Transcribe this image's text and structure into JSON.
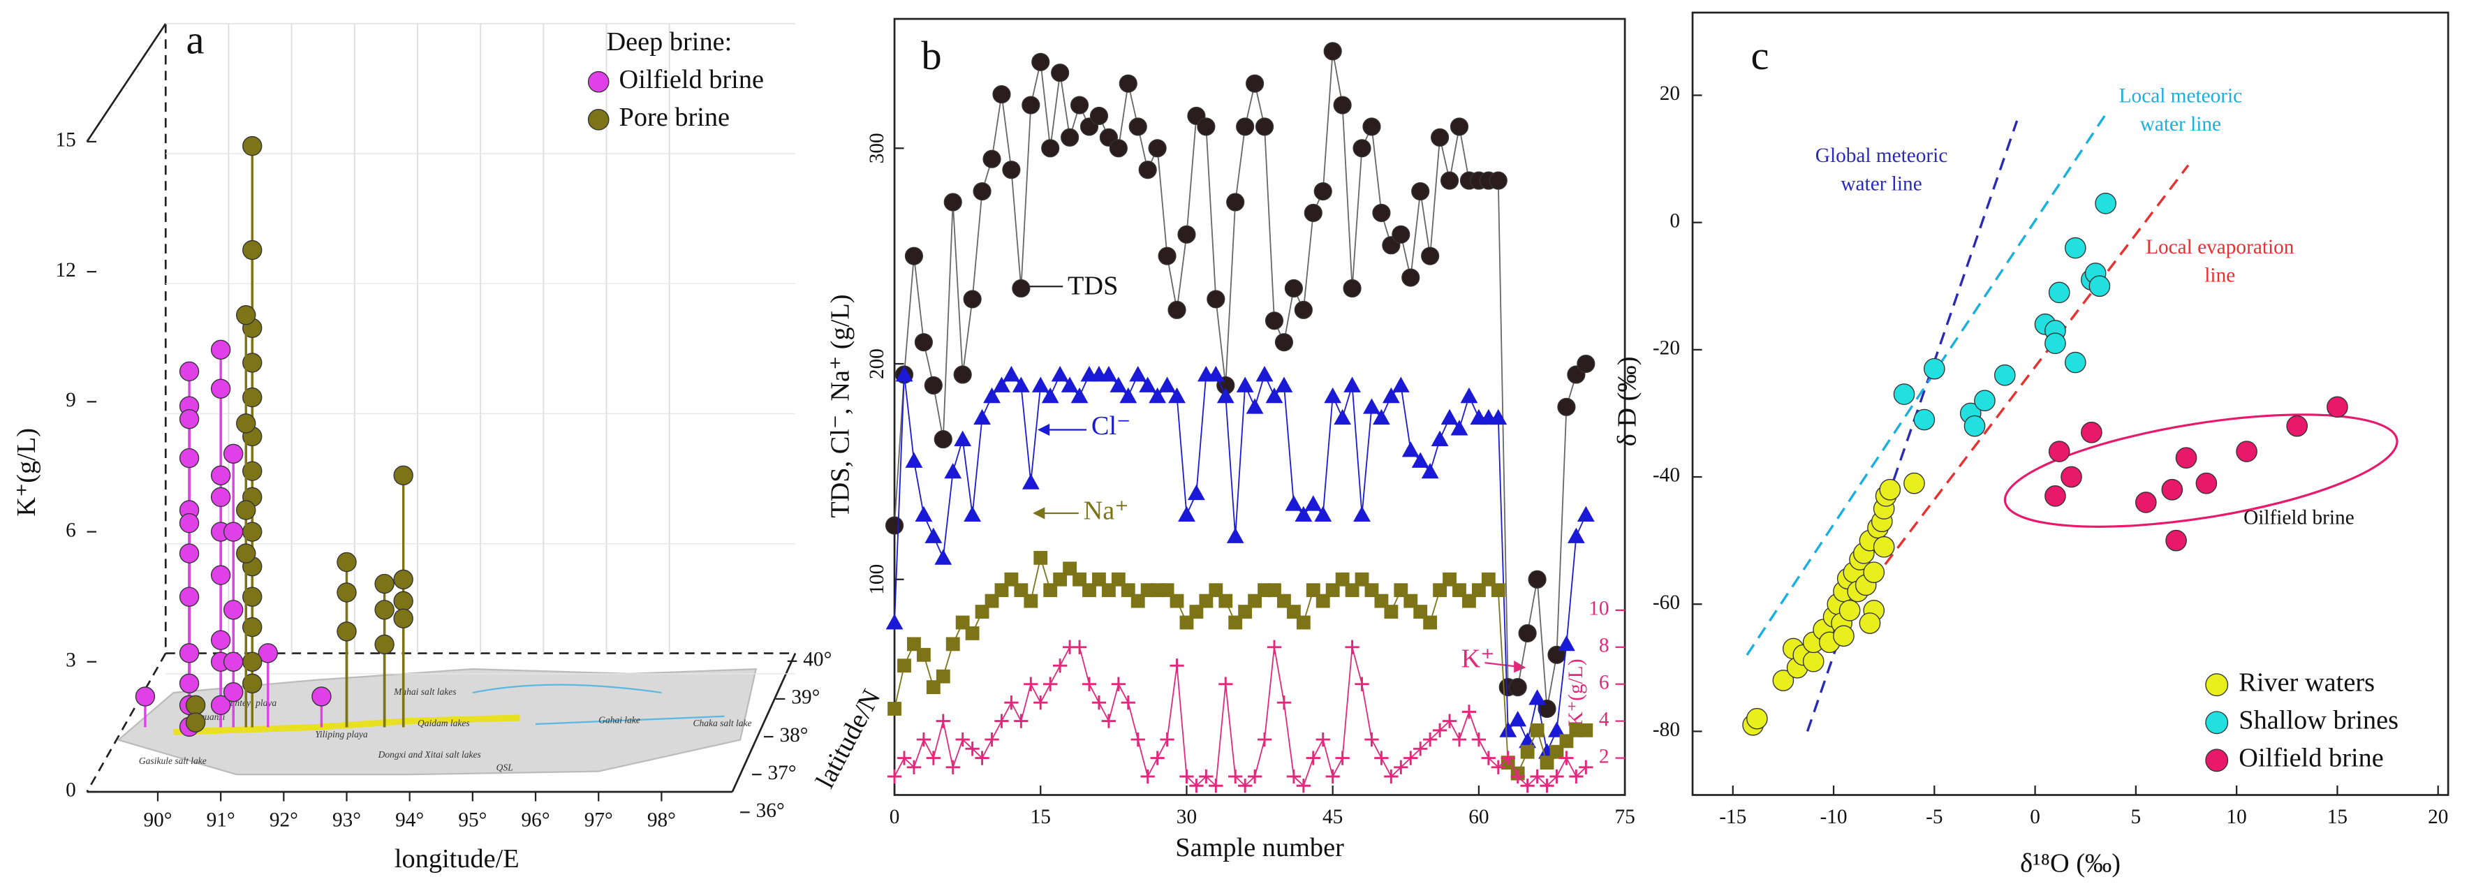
{
  "chart_data": [
    {
      "type": "scatter",
      "stems": true,
      "panel": "a",
      "xlabel": "longitude/E",
      "ylabel": "K⁺(g/L)",
      "zlabel": "latitude/N",
      "legend_title": "Deep brine:",
      "xlim": [
        89.3,
        99
      ],
      "xticks": [
        {
          "value": 90,
          "label": "90°"
        },
        {
          "value": 91,
          "label": "91°"
        },
        {
          "value": 92,
          "label": "92°"
        },
        {
          "value": 93,
          "label": "93°"
        },
        {
          "value": 94,
          "label": "94°"
        },
        {
          "value": 95,
          "label": "95°"
        },
        {
          "value": 96,
          "label": "96°"
        },
        {
          "value": 97,
          "label": "97°"
        },
        {
          "value": 98,
          "label": "98°"
        }
      ],
      "ylim": [
        0,
        15
      ],
      "yticks": [
        0,
        3,
        6,
        9,
        12,
        15
      ],
      "zlim": [
        36,
        40
      ],
      "zticks": [
        {
          "value": 36,
          "label": "36°"
        },
        {
          "value": 37,
          "label": "37°"
        },
        {
          "value": 38,
          "label": "38°"
        },
        {
          "value": 39,
          "label": "39°"
        },
        {
          "value": 40,
          "label": "40°"
        }
      ],
      "map_labels": [
        "Gasikule salt lake",
        "Yanquanzi",
        "Kunteyi playa",
        "Yiliping playa",
        "Mahai salt lakes",
        "Qaidam lakes",
        "Gahai lake",
        "Chaka salt lake",
        "Dongxi and Xitai salt lakes",
        "QSL"
      ],
      "series": [
        {
          "name": "Oilfield brine",
          "color": "#e040e8",
          "x": [
            90.5,
            90.5,
            90.5,
            90.5,
            90.5,
            90.5,
            90.5,
            90.5,
            90.5,
            90.5,
            90.5,
            90.5,
            91.0,
            91.0,
            91.0,
            91.0,
            91.0,
            91.0,
            91.0,
            91.0,
            91.0,
            91.2,
            91.2,
            91.2,
            91.2,
            91.2,
            91.75,
            89.8,
            92.6
          ],
          "values": [
            9.7,
            8.9,
            8.6,
            7.7,
            6.5,
            6.2,
            5.5,
            4.5,
            3.2,
            2.5,
            2.0,
            1.5,
            10.2,
            9.3,
            7.3,
            6.8,
            6.0,
            5.0,
            3.5,
            3.0,
            2.0,
            7.8,
            6.0,
            4.2,
            3.0,
            2.3,
            3.2,
            2.2,
            2.2
          ]
        },
        {
          "name": "Pore brine",
          "color": "#7d7418",
          "x": [
            91.5,
            91.5,
            91.5,
            91.5,
            91.5,
            91.5,
            91.5,
            91.5,
            91.5,
            91.5,
            91.5,
            91.5,
            91.5,
            91.5,
            91.4,
            91.4,
            91.4,
            91.4,
            93.0,
            93.0,
            93.0,
            93.6,
            93.6,
            93.6,
            93.9,
            93.9,
            93.9,
            93.9,
            90.6,
            90.6
          ],
          "values": [
            14.9,
            12.5,
            10.7,
            9.9,
            9.1,
            8.2,
            7.4,
            6.8,
            6.0,
            5.2,
            4.5,
            3.8,
            3.0,
            2.5,
            11.0,
            8.5,
            6.5,
            5.5,
            5.3,
            4.6,
            3.7,
            4.8,
            4.2,
            3.4,
            7.3,
            4.9,
            4.4,
            4.0,
            2.0,
            1.6
          ]
        }
      ]
    },
    {
      "type": "line",
      "panel": "b",
      "xlabel": "Sample number",
      "ylabel": "TDS, Cl⁻, Na⁺ (g/L)",
      "y2label": "K⁺(g/L)",
      "annotations": [
        "TDS",
        "Cl⁻",
        "Na⁺",
        "K⁺"
      ],
      "xlim": [
        0,
        75
      ],
      "xticks": [
        0,
        15,
        30,
        45,
        60,
        75
      ],
      "ylim": [
        0,
        360
      ],
      "yticks": [
        100,
        200,
        300
      ],
      "y2lim": [
        0,
        42
      ],
      "y2ticks": [
        2,
        4,
        6,
        8,
        10
      ],
      "x": [
        0,
        1,
        2,
        3,
        4,
        5,
        6,
        7,
        8,
        9,
        10,
        11,
        12,
        13,
        14,
        15,
        16,
        17,
        18,
        19,
        20,
        21,
        22,
        23,
        24,
        25,
        26,
        27,
        28,
        29,
        30,
        31,
        32,
        33,
        34,
        35,
        36,
        37,
        38,
        39,
        40,
        41,
        42,
        43,
        44,
        45,
        46,
        47,
        48,
        49,
        50,
        51,
        52,
        53,
        54,
        55,
        56,
        57,
        58,
        59,
        60,
        61,
        62,
        63,
        64,
        65,
        66,
        67,
        68,
        69,
        70,
        71
      ],
      "series": [
        {
          "name": "TDS",
          "color": "#2b1d1d",
          "line_color": "#666",
          "marker": "circle",
          "values": [
            125,
            195,
            250,
            210,
            190,
            165,
            275,
            195,
            230,
            280,
            295,
            325,
            290,
            235,
            320,
            340,
            300,
            335,
            305,
            320,
            310,
            315,
            305,
            300,
            330,
            310,
            290,
            300,
            250,
            225,
            260,
            315,
            310,
            230,
            190,
            275,
            310,
            330,
            310,
            220,
            210,
            235,
            225,
            270,
            280,
            345,
            320,
            235,
            300,
            310,
            270,
            255,
            260,
            240,
            280,
            250,
            305,
            285,
            310,
            285,
            285,
            285,
            285,
            50,
            50,
            75,
            100,
            40,
            65,
            180,
            195,
            200
          ]
        },
        {
          "name": "Cl⁻",
          "color": "#1a1ad6",
          "line_color": "#1a1ad6",
          "marker": "triangle",
          "values": [
            80,
            195,
            155,
            130,
            120,
            110,
            150,
            165,
            130,
            175,
            185,
            190,
            195,
            190,
            145,
            190,
            185,
            195,
            190,
            185,
            195,
            195,
            195,
            190,
            185,
            195,
            190,
            185,
            190,
            185,
            130,
            140,
            195,
            195,
            185,
            120,
            190,
            180,
            195,
            185,
            190,
            135,
            130,
            135,
            130,
            185,
            175,
            190,
            130,
            180,
            175,
            185,
            190,
            160,
            155,
            150,
            165,
            175,
            170,
            185,
            175,
            175,
            175,
            30,
            35,
            25,
            45,
            20,
            30,
            70,
            120,
            130
          ]
        },
        {
          "name": "Na⁺",
          "color": "#7d7418",
          "line_color": "#7d7418",
          "marker": "square",
          "values": [
            40,
            60,
            70,
            65,
            50,
            55,
            70,
            80,
            75,
            85,
            90,
            95,
            100,
            95,
            90,
            110,
            95,
            100,
            105,
            100,
            95,
            100,
            95,
            100,
            95,
            90,
            95,
            95,
            95,
            90,
            80,
            85,
            90,
            95,
            90,
            80,
            85,
            90,
            95,
            95,
            90,
            85,
            80,
            95,
            90,
            95,
            100,
            95,
            100,
            95,
            90,
            85,
            95,
            90,
            85,
            80,
            95,
            100,
            95,
            90,
            95,
            100,
            95,
            15,
            10,
            20,
            30,
            15,
            20,
            25,
            30,
            30
          ]
        },
        {
          "name": "K⁺",
          "color": "#e3287c",
          "line_color": "#e3287c",
          "marker": "plus",
          "axis": "y2",
          "values": [
            1,
            2,
            1.5,
            3,
            2,
            4,
            1.5,
            3,
            2.5,
            2,
            3,
            4,
            5,
            4,
            6,
            5,
            6,
            7,
            8,
            8,
            6,
            5,
            4,
            6,
            5,
            3,
            1,
            2,
            3,
            7,
            1,
            0.5,
            1,
            0.5,
            6,
            1,
            0.5,
            1,
            3,
            8,
            5,
            1,
            0.5,
            2,
            3,
            1,
            2,
            8,
            6,
            3,
            2,
            1,
            1.5,
            2,
            2.5,
            3,
            3.5,
            4,
            3,
            4.5,
            3,
            2,
            1.5,
            2,
            1,
            0.5,
            1,
            0.5,
            1,
            2,
            1,
            1.5
          ]
        }
      ]
    },
    {
      "type": "scatter",
      "panel": "c",
      "xlabel": "δ¹⁸O (‰)",
      "ylabel": "δ D (‰)",
      "xlim": [
        -17,
        20.5
      ],
      "xticks": [
        -15,
        -10,
        -5,
        0,
        5,
        10,
        15,
        20
      ],
      "ylim": [
        -90,
        33
      ],
      "yticks": [
        -80,
        -60,
        -40,
        -20,
        0,
        20
      ],
      "legend": "lower right",
      "ellipse_label": "Oilfield brine",
      "lines": [
        {
          "label": [
            "Global meteoric",
            "water line"
          ],
          "color": "#2a2ab8",
          "x": [
            -11.3,
            -0.9
          ],
          "values": [
            -80,
            16
          ]
        },
        {
          "label": [
            "Local meteoric",
            "water line"
          ],
          "color": "#19b0e0",
          "x": [
            -14.3,
            3.5
          ],
          "values": [
            -68,
            17
          ]
        },
        {
          "label": [
            "Local evaporation",
            "line"
          ],
          "color": "#e83030",
          "x": [
            -9.9,
            7.6
          ],
          "values": [
            -64,
            9
          ]
        }
      ],
      "series": [
        {
          "name": "River waters",
          "color": "#e8ef1c",
          "x": [
            -14,
            -13.8,
            -12.5,
            -12,
            -11.8,
            -11.5,
            -11,
            -11,
            -10.5,
            -10.2,
            -10,
            -9.8,
            -9.6,
            -9.5,
            -9.3,
            -9.2,
            -9,
            -8.8,
            -8.7,
            -8.5,
            -8.4,
            -8.2,
            -8,
            -8,
            -7.8,
            -7.6,
            -7.5,
            -7.4,
            -7.2,
            -7.5,
            -8.2,
            -9.5,
            -6
          ],
          "values": [
            -79,
            -78,
            -72,
            -67,
            -70,
            -68,
            -69,
            -66,
            -64,
            -66,
            -62,
            -60,
            -63,
            -58,
            -56,
            -61,
            -55,
            -58,
            -53,
            -52,
            -57,
            -50,
            -55,
            -61,
            -48,
            -47,
            -45,
            -43,
            -42,
            -51,
            -63,
            -65,
            -41
          ]
        },
        {
          "name": "Shallow brines",
          "color": "#22e0e0",
          "x": [
            -6.5,
            -5.5,
            -5,
            -3.2,
            -3,
            -2.5,
            -1.5,
            0.5,
            1,
            1,
            1.2,
            2,
            2,
            2.8,
            3,
            3.2,
            3.5
          ],
          "values": [
            -27,
            -31,
            -23,
            -30,
            -32,
            -28,
            -24,
            -16,
            -17,
            -19,
            -11,
            -22,
            -4,
            -9,
            -8,
            -10,
            3
          ]
        },
        {
          "name": "Oilfield brine",
          "color": "#e8186a",
          "x": [
            1,
            1.2,
            1.8,
            2.8,
            5.5,
            6.8,
            7,
            7.5,
            8.5,
            10.5,
            13,
            15
          ],
          "values": [
            -43,
            -36,
            -40,
            -33,
            -44,
            -42,
            -50,
            -37,
            -41,
            -36,
            -32,
            -29
          ]
        }
      ]
    }
  ]
}
